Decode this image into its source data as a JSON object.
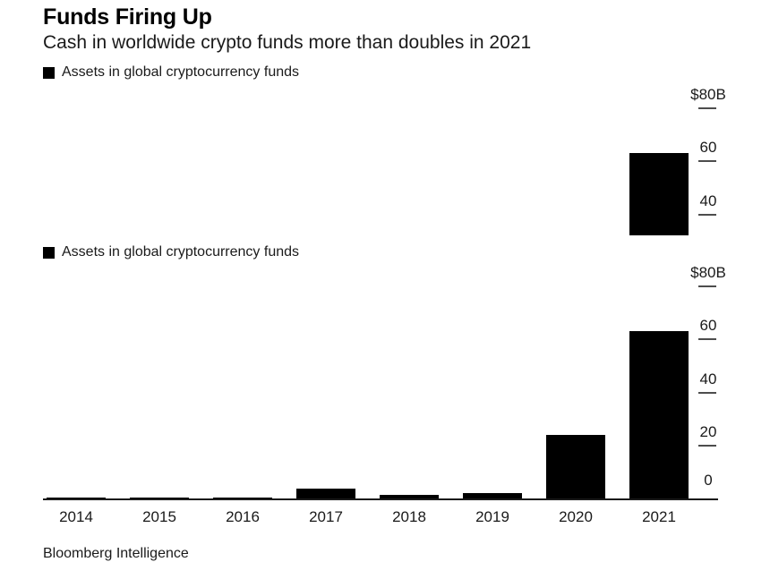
{
  "header": {
    "title": "Funds Firing Up",
    "subtitle": "Cash in worldwide crypto funds more than doubles in 2021"
  },
  "legend": {
    "label": "Assets in global cryptocurrency funds",
    "marker_color": "#000000"
  },
  "chart_data": {
    "type": "bar",
    "title": "Funds Firing Up",
    "subtitle": "Cash in worldwide crypto funds more than doubles in 2021",
    "legend_entries": [
      "Assets in global cryptocurrency funds"
    ],
    "categories": [
      "2014",
      "2015",
      "2016",
      "2017",
      "2018",
      "2019",
      "2020",
      "2021"
    ],
    "values": [
      0.4,
      0.4,
      0.4,
      3.7,
      1.3,
      2.1,
      24,
      63
    ],
    "unit": "billions of US dollars",
    "ylim": [
      0,
      80
    ],
    "y_ticks": [
      {
        "value": 80,
        "label": "$80B"
      },
      {
        "value": 60,
        "label": "60"
      },
      {
        "value": 40,
        "label": "40"
      },
      {
        "value": 20,
        "label": "20"
      },
      {
        "value": 0,
        "label": "0"
      }
    ],
    "axis_side": "right",
    "grid": false,
    "bar_color": "#000000"
  },
  "source": "Bloomberg Intelligence",
  "colors": {
    "background": "#ffffff",
    "bar": "#000000",
    "tick": "#4d4d4d",
    "text": "#1a1a1a"
  }
}
